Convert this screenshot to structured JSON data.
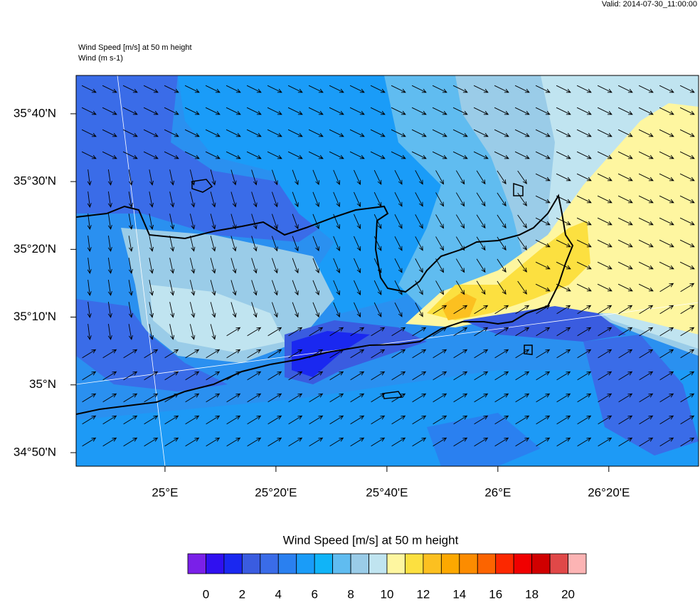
{
  "header": {
    "valid": "Valid: 2014-07-30_11:00:00",
    "title": "Wind Speed [m/s] at 50 m height",
    "subtitle": "Wind   (m s-1)"
  },
  "map": {
    "xlim": [
      24.733,
      26.603
    ],
    "ylim": [
      34.8,
      35.761
    ],
    "xticks": [
      {
        "value": 25,
        "label": "25°E"
      },
      {
        "value": 25.3333,
        "label": "25°20'E"
      },
      {
        "value": 25.6667,
        "label": "25°40'E"
      },
      {
        "value": 26,
        "label": "26°E"
      },
      {
        "value": 26.3333,
        "label": "26°20'E"
      }
    ],
    "yticks": [
      {
        "value": 35.6667,
        "label": "35°40'N"
      },
      {
        "value": 35.5,
        "label": "35°30'N"
      },
      {
        "value": 35.3333,
        "label": "35°20'N"
      },
      {
        "value": 35.1667,
        "label": "35°10'N"
      },
      {
        "value": 35,
        "label": "35°N"
      },
      {
        "value": 34.8333,
        "label": "34°50'N"
      }
    ]
  },
  "colorbar": {
    "title": "Wind Speed [m/s] at 50 m height",
    "colors": [
      "#7a20e8",
      "#3010f0",
      "#1a28f0",
      "#3a5ce0",
      "#3a6ce8",
      "#2a80f0",
      "#1a9cf8",
      "#10b4f8",
      "#60bcf0",
      "#9acce8",
      "#c0e4f0",
      "#fef6a0",
      "#fce040",
      "#fcc020",
      "#fca800",
      "#fc8c00",
      "#fc6400",
      "#fc2800",
      "#f00000",
      "#d00000",
      "#e04848",
      "#fcb4b4"
    ],
    "ticks": [
      0,
      2,
      4,
      6,
      8,
      10,
      12,
      14,
      16,
      18,
      20
    ]
  }
}
